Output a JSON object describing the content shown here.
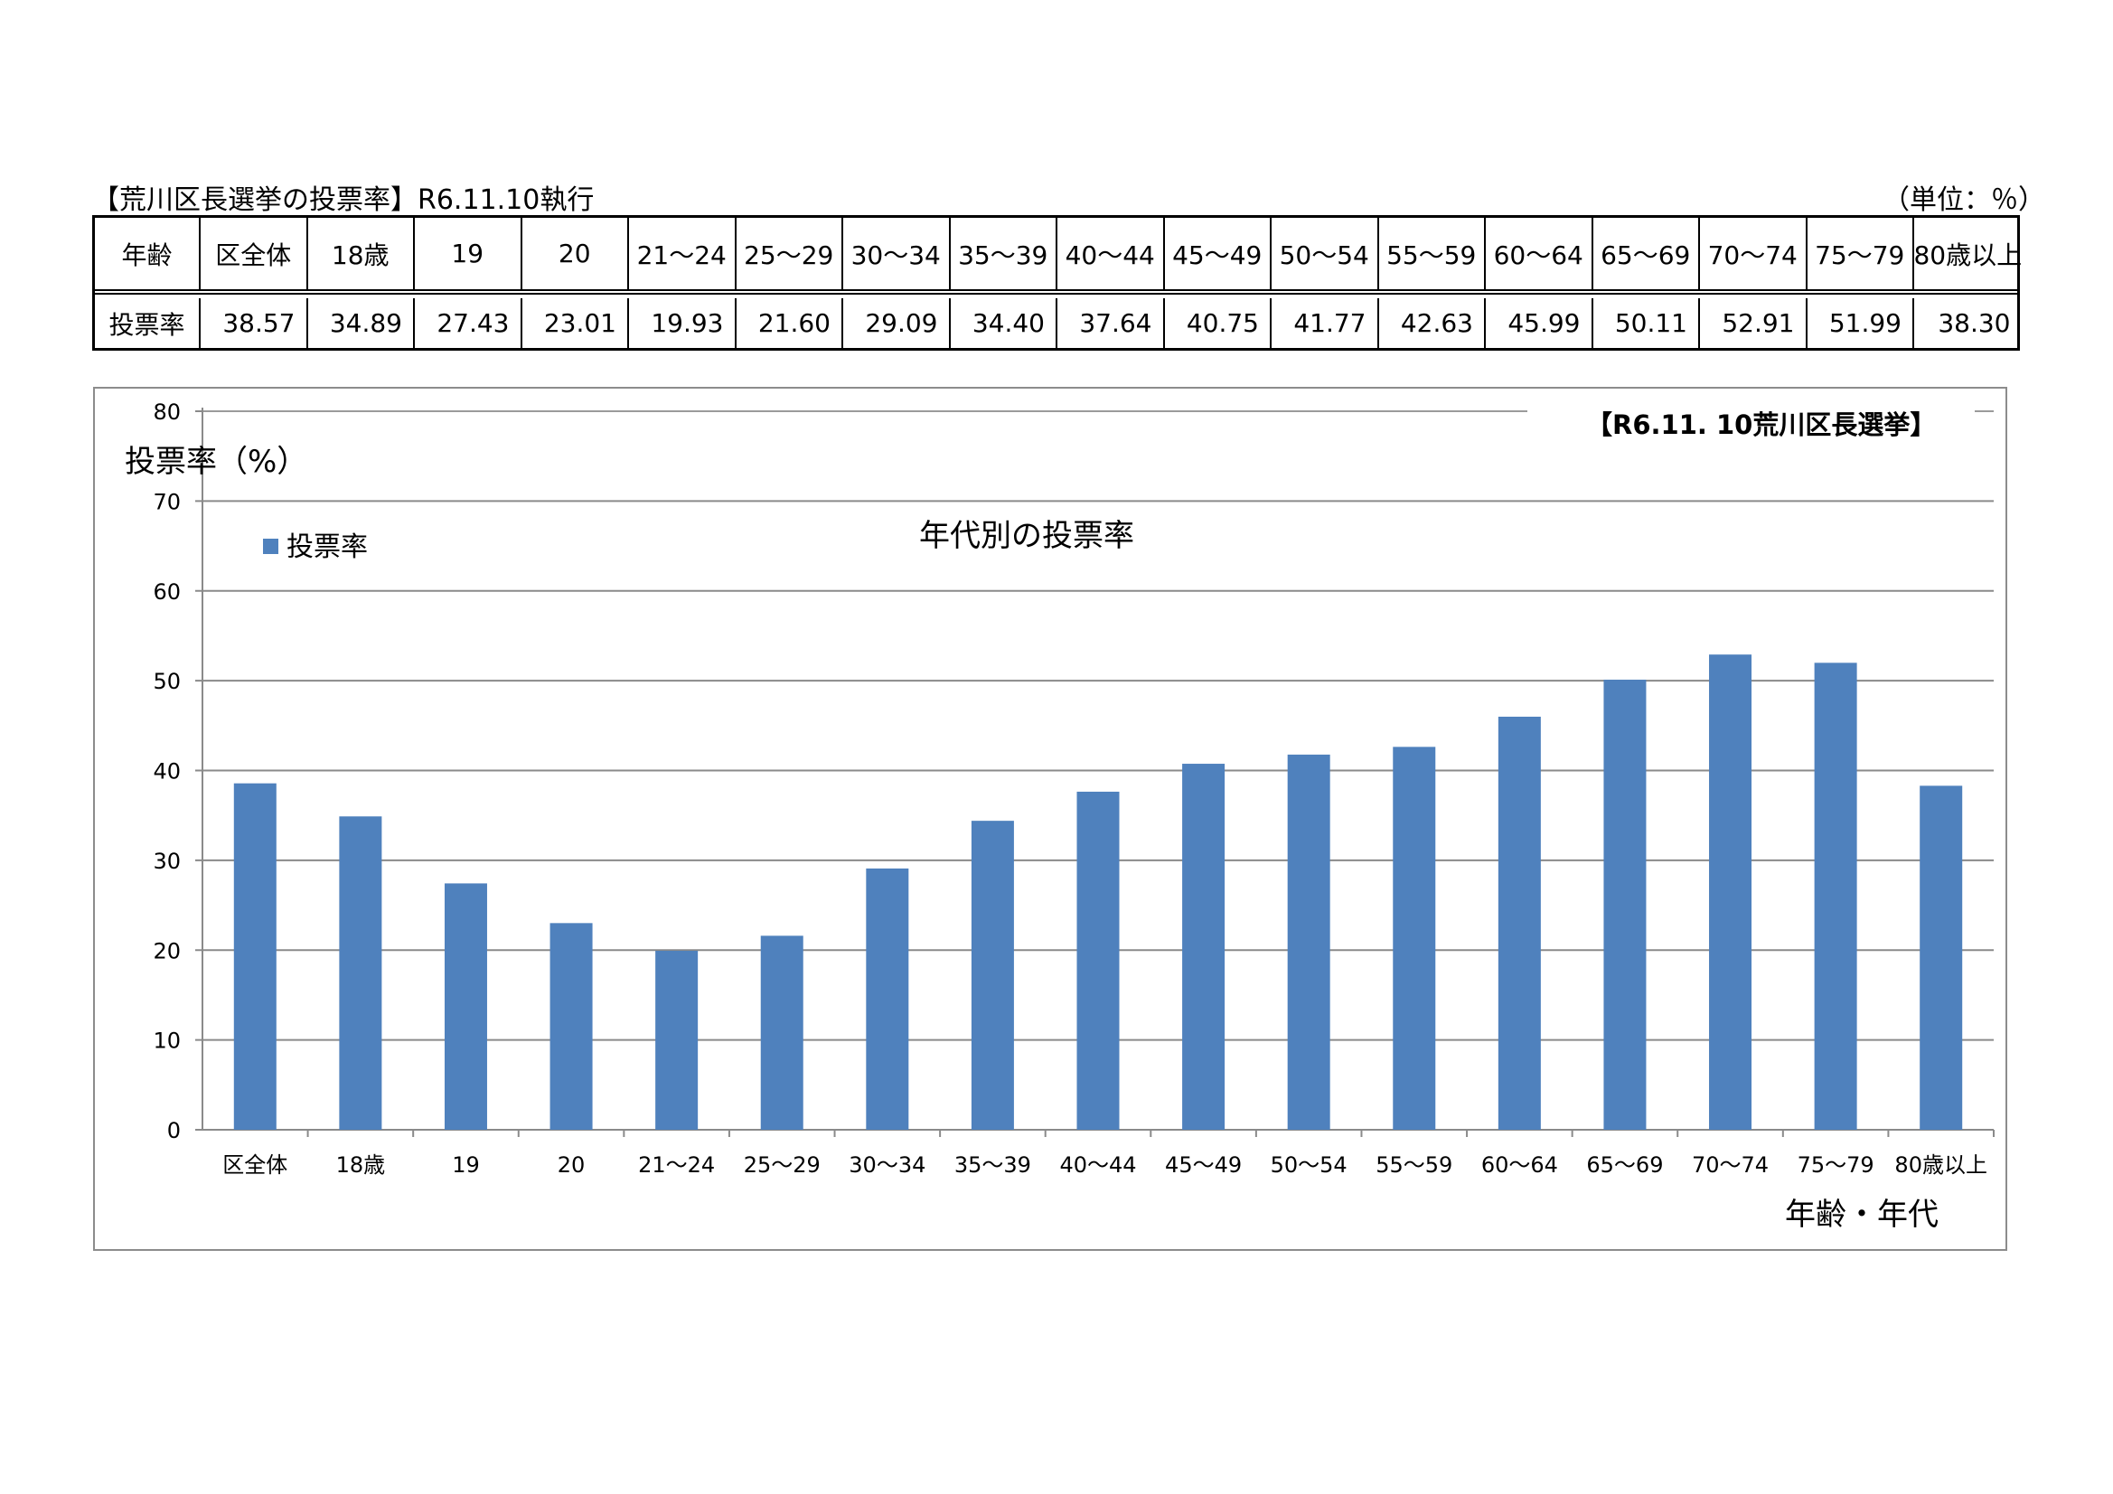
{
  "header": {
    "title": "【荒川区長選挙の投票率】R6.11.10執行",
    "unit": "（単位：％）"
  },
  "table": {
    "head_label": "年齢",
    "row_label": "投票率",
    "columns": [
      "区全体",
      "18歳",
      "19",
      "20",
      "21～24",
      "25～29",
      "30～34",
      "35～39",
      "40～44",
      "45～49",
      "50～54",
      "55～59",
      "60～64",
      "65～69",
      "70～74",
      "75～79",
      "80歳以上"
    ],
    "values": [
      "38.57",
      "34.89",
      "27.43",
      "23.01",
      "19.93",
      "21.60",
      "29.09",
      "34.40",
      "37.64",
      "40.75",
      "41.77",
      "42.63",
      "45.99",
      "50.11",
      "52.91",
      "51.99",
      "38.30"
    ]
  },
  "chart_data": {
    "type": "bar",
    "title": "年代別の投票率",
    "subtitle": "【R6.11. 10荒川区長選挙】",
    "ylabel": "投票率（%）",
    "xlabel": "年齢・年代",
    "ylim": [
      0,
      80
    ],
    "yticks": [
      0,
      10,
      20,
      30,
      40,
      50,
      60,
      70,
      80
    ],
    "grid": true,
    "legend_position": "top-left",
    "categories": [
      "区全体",
      "18歳",
      "19",
      "20",
      "21～24",
      "25～29",
      "30～34",
      "35～39",
      "40～44",
      "45～49",
      "50～54",
      "55～59",
      "60～64",
      "65～69",
      "70～74",
      "75～79",
      "80歳以上"
    ],
    "series": [
      {
        "name": "投票率",
        "color": "#4f81bd",
        "values": [
          38.57,
          34.89,
          27.43,
          23.01,
          19.93,
          21.6,
          29.09,
          34.4,
          37.64,
          40.75,
          41.77,
          42.63,
          45.99,
          50.11,
          52.91,
          51.99,
          38.3
        ]
      }
    ]
  }
}
